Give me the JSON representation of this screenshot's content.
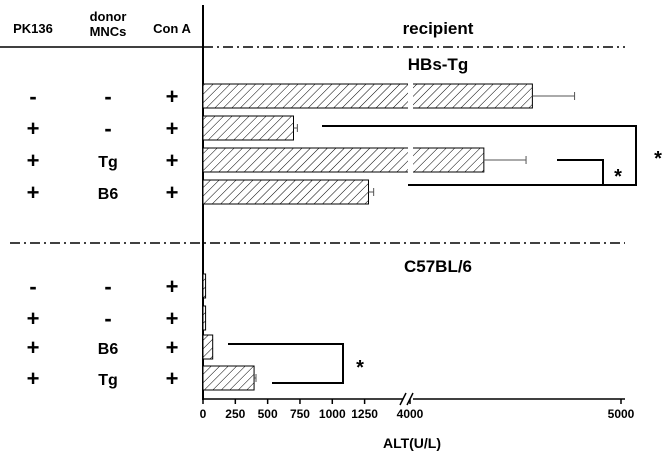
{
  "chart_data": {
    "type": "bar",
    "orientation": "horizontal",
    "columns": [
      "PK136",
      "donor MNCs",
      "Con A"
    ],
    "columns_lines": [
      [
        "PK136"
      ],
      [
        "donor",
        "MNCs"
      ],
      [
        "Con A"
      ]
    ],
    "title": "recipient",
    "xlabel": "ALT(U/L)",
    "x_broken_axis": true,
    "x_ticks_low": [
      "0",
      "250",
      "500",
      "750",
      "1000",
      "1250"
    ],
    "x_ticks_high": [
      "4000",
      "5000"
    ],
    "groups": [
      {
        "name": "HBs-Tg",
        "rows": [
          {
            "pk136": "-",
            "donor": "-",
            "cona": "+",
            "value": 4580,
            "error": 200
          },
          {
            "pk136": "+",
            "donor": "-",
            "cona": "+",
            "value": 700,
            "error": 30
          },
          {
            "pk136": "+",
            "donor": "Tg",
            "cona": "+",
            "value": 4350,
            "error": 200
          },
          {
            "pk136": "+",
            "donor": "B6",
            "cona": "+",
            "value": 1280,
            "error": 40
          }
        ],
        "significance": [
          {
            "from": 1,
            "to": 3,
            "label": "*"
          },
          {
            "from": 2,
            "to": 3,
            "label": "*"
          }
        ]
      },
      {
        "name": "C57BL/6",
        "rows": [
          {
            "pk136": "-",
            "donor": "-",
            "cona": "+",
            "value": 20,
            "error": 0
          },
          {
            "pk136": "+",
            "donor": "-",
            "cona": "+",
            "value": 20,
            "error": 0
          },
          {
            "pk136": "+",
            "donor": "B6",
            "cona": "+",
            "value": 75,
            "error": 0
          },
          {
            "pk136": "+",
            "donor": "Tg",
            "cona": "+",
            "value": 395,
            "error": 15
          }
        ],
        "significance": [
          {
            "from": 2,
            "to": 3,
            "label": "*"
          }
        ]
      }
    ]
  }
}
